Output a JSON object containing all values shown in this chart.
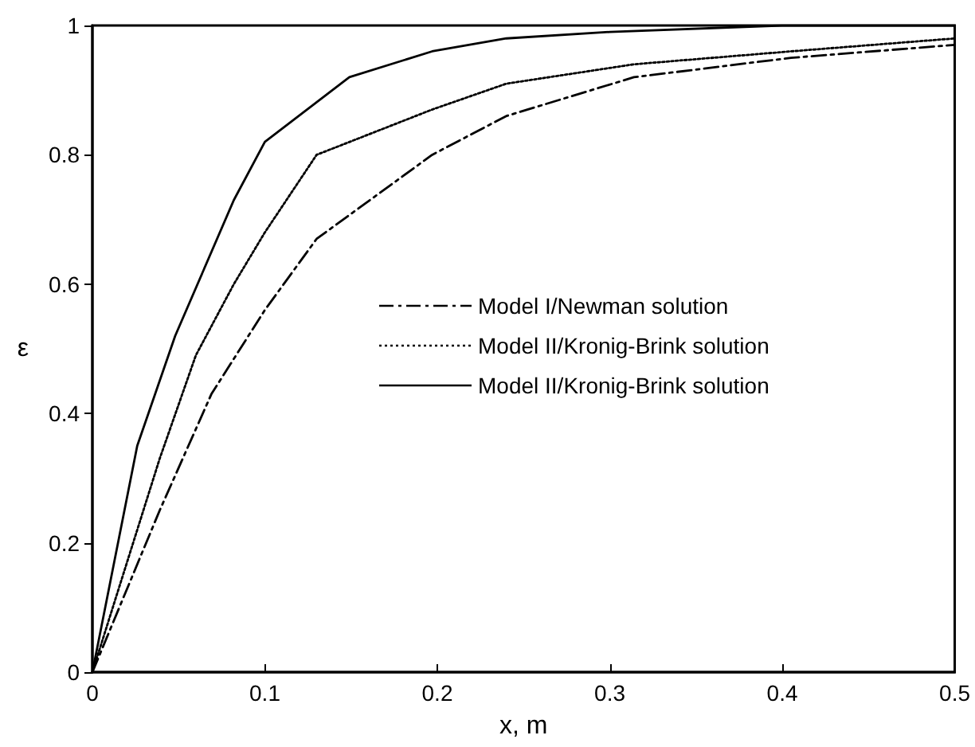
{
  "chart_data": {
    "type": "line",
    "xlabel": "x, m",
    "ylabel": "ε",
    "xlim": [
      0,
      0.5
    ],
    "ylim": [
      0,
      1
    ],
    "xticks": [
      0,
      0.1,
      0.2,
      0.3,
      0.4,
      0.5
    ],
    "yticks": [
      0,
      0.2,
      0.4,
      0.6,
      0.8,
      1
    ],
    "grid": false,
    "legend": "right",
    "marker": "none",
    "series": [
      {
        "name": "Model I/Newman solution",
        "color": "#000000",
        "line_style": "dashdot",
        "x": [
          0,
          0.039,
          0.069,
          0.1,
          0.13,
          0.197,
          0.24,
          0.314,
          0.405,
          0.5
        ],
        "values": [
          0,
          0.25,
          0.43,
          0.56,
          0.67,
          0.8,
          0.86,
          0.92,
          0.95,
          0.97
        ]
      },
      {
        "name": "Model II/Kronig-Brink solution",
        "color": "#000000",
        "line_style": "dotted",
        "x": [
          0,
          0.039,
          0.06,
          0.082,
          0.1,
          0.13,
          0.197,
          0.24,
          0.314,
          0.405,
          0.5
        ],
        "values": [
          0,
          0.33,
          0.49,
          0.6,
          0.68,
          0.8,
          0.87,
          0.91,
          0.94,
          0.96,
          0.98
        ]
      },
      {
        "name": "Model II/Kronig-Brink solution",
        "color": "#000000",
        "line_style": "solid",
        "x": [
          0,
          0.026,
          0.048,
          0.082,
          0.1,
          0.149,
          0.197,
          0.24,
          0.3,
          0.4,
          0.5
        ],
        "values": [
          0,
          0.35,
          0.52,
          0.73,
          0.82,
          0.92,
          0.96,
          0.98,
          0.99,
          1,
          1
        ]
      }
    ]
  }
}
